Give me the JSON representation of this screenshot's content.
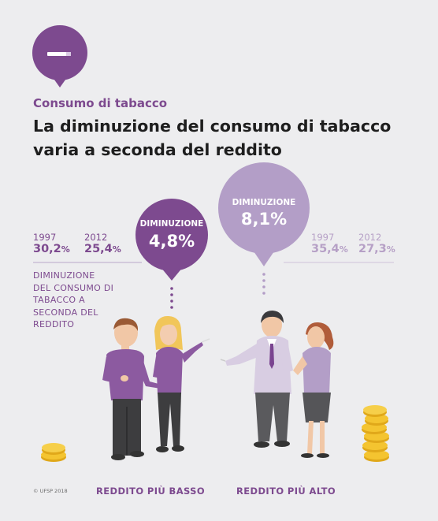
{
  "category": "Consumo di tabacco",
  "headline": [
    "La diminuzione del consumo di tabacco",
    "varia a seconda del reddito"
  ],
  "icon": "cigarette-icon",
  "colors": {
    "dark_purple": "#7d4a8f",
    "light_purple": "#b39ec7",
    "background": "#ededef"
  },
  "low_income": {
    "year1": "1997",
    "value1": "30,2",
    "year2": "2012",
    "value2": "25,4",
    "decrease_label": "DIMINUZIONE",
    "decrease_value": "4,8",
    "group_label": "REDDITO PIÙ BASSO"
  },
  "high_income": {
    "year1": "1997",
    "value1": "35,4",
    "year2": "2012",
    "value2": "27,3",
    "decrease_label": "DIMINUZIONE",
    "decrease_value": "8,1",
    "group_label": "REDDITO PIÙ ALTO"
  },
  "unit": "%",
  "note": [
    "DIMINUZIONE",
    "DEL CONSUMO DI",
    "TABACCO A",
    "SECONDA DEL",
    "REDDITO"
  ],
  "copyright": "© UFSP 2018"
}
